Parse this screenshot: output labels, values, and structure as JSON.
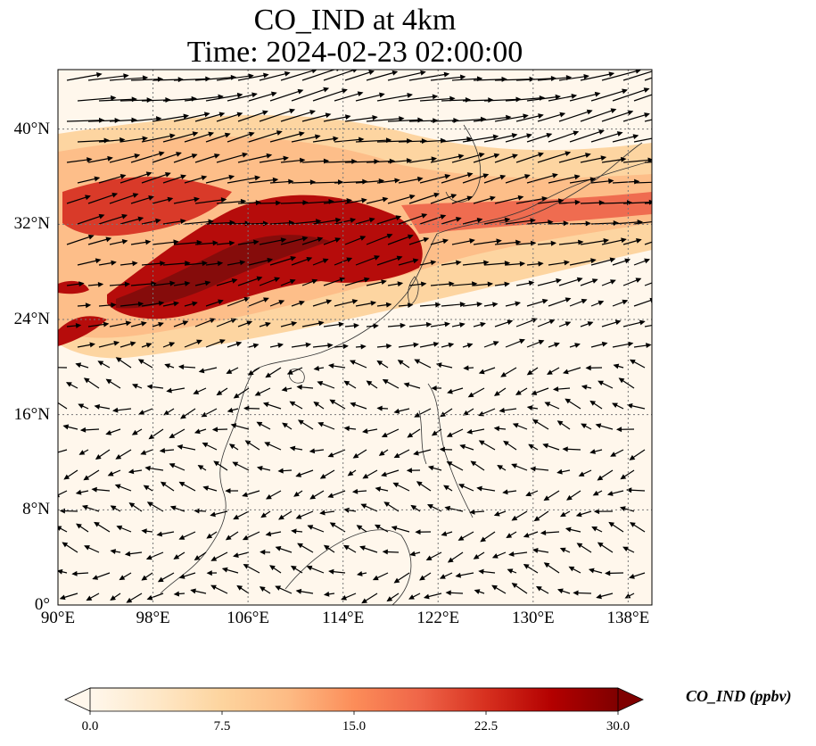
{
  "title": {
    "line1": "CO_IND at 4km",
    "line2": "Time: 2024-02-23 02:00:00"
  },
  "map": {
    "projection": "PlateCarree",
    "lon_range": [
      90,
      140
    ],
    "lat_range": [
      0,
      45
    ],
    "gridlines": "dotted",
    "lon_ticks": [
      {
        "value": 90,
        "label": "90°E"
      },
      {
        "value": 98,
        "label": "98°E"
      },
      {
        "value": 106,
        "label": "106°E"
      },
      {
        "value": 114,
        "label": "114°E"
      },
      {
        "value": 122,
        "label": "122°E"
      },
      {
        "value": 130,
        "label": "130°E"
      },
      {
        "value": 138,
        "label": "138°E"
      }
    ],
    "lat_ticks": [
      {
        "value": 0,
        "label": "0°"
      },
      {
        "value": 8,
        "label": "8°N"
      },
      {
        "value": 16,
        "label": "16°N"
      },
      {
        "value": 24,
        "label": "24°N"
      },
      {
        "value": 32,
        "label": "32°N"
      },
      {
        "value": 40,
        "label": "40°N"
      }
    ],
    "field": "CO_IND concentration (ppbv), filled contours",
    "overlay": "wind vectors (quiver)"
  },
  "colorbar": {
    "label": "CO_IND (ppbv)",
    "min": 0.0,
    "max": 30.0,
    "extend": "both",
    "ticks": [
      "0.0",
      "7.5",
      "15.0",
      "22.5",
      "30.0"
    ],
    "colormap": "OrRd",
    "colors": [
      "#fff7ec",
      "#fee8c8",
      "#fdd49e",
      "#fdbb84",
      "#fc8d59",
      "#ef6548",
      "#d7301f",
      "#b30000",
      "#7f0000"
    ]
  }
}
